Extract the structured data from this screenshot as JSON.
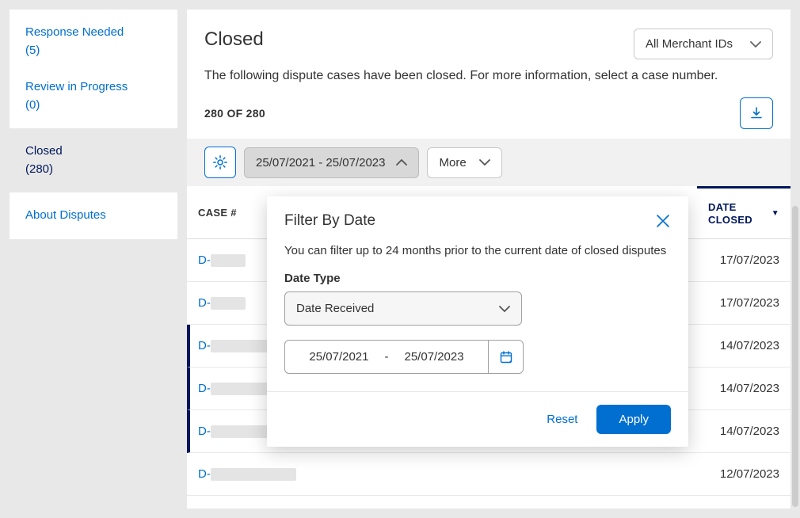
{
  "sidebar": {
    "response_needed": {
      "label": "Response Needed",
      "count": "(5)"
    },
    "review_progress": {
      "label": "Review in Progress",
      "count": "(0)"
    },
    "closed": {
      "label": "Closed",
      "count": "(280)"
    },
    "about": "About Disputes"
  },
  "header": {
    "title": "Closed",
    "merchant_select": "All Merchant IDs"
  },
  "subtitle": "The following dispute cases have been closed. For more information, select a case number.",
  "count_label": "280 OF 280",
  "filters": {
    "date_range": "25/07/2021 - 25/07/2023",
    "more": "More"
  },
  "columns": {
    "case": "CASE #",
    "date_closed": "DATE CLOSED"
  },
  "rows": [
    {
      "prefix": "D-",
      "redact": "sm",
      "highlight": false,
      "date": "17/07/2023"
    },
    {
      "prefix": "D-",
      "redact": "sm",
      "highlight": false,
      "date": "17/07/2023"
    },
    {
      "prefix": "D-",
      "redact": "md",
      "highlight": true,
      "date": "14/07/2023"
    },
    {
      "prefix": "D-",
      "redact": "md",
      "highlight": true,
      "date": "14/07/2023"
    },
    {
      "prefix": "D-",
      "redact": "md",
      "highlight": true,
      "date": "14/07/2023"
    },
    {
      "prefix": "D-",
      "redact": "md",
      "highlight": false,
      "date": "12/07/2023"
    }
  ],
  "popover": {
    "title": "Filter By Date",
    "helper": "You can filter up to 24 months prior to the current date of closed disputes",
    "date_type_label": "Date Type",
    "date_type_value": "Date Received",
    "start": "25/07/2021",
    "sep": "-",
    "end": "25/07/2023",
    "reset": "Reset",
    "apply": "Apply"
  },
  "colors": {
    "link": "#006fcf",
    "accent_dark": "#00175a"
  }
}
